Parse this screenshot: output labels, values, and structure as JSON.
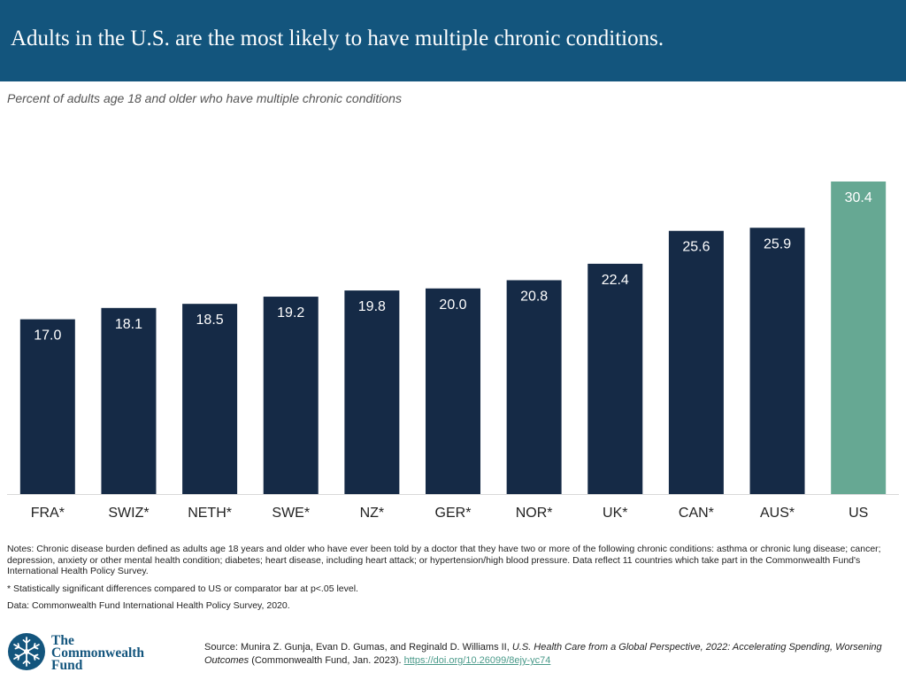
{
  "header": {
    "title": "Adults in the U.S. are the most likely to have multiple chronic conditions."
  },
  "colors": {
    "header_bg": "#13557d",
    "bar_default": "#152a46",
    "bar_us": "#66a893",
    "label_light": "#ffffff",
    "axis_line": "#d9d9d9"
  },
  "chart_data": {
    "type": "bar",
    "title": "Percent of adults age 18 and older who have multiple chronic conditions",
    "categories": [
      "FRA*",
      "SWIZ*",
      "NETH*",
      "SWE*",
      "NZ*",
      "GER*",
      "NOR*",
      "UK*",
      "CAN*",
      "AUS*",
      "US"
    ],
    "values": [
      17.0,
      18.1,
      18.5,
      19.2,
      19.8,
      20.0,
      20.8,
      22.4,
      25.6,
      25.9,
      30.4
    ],
    "value_labels": [
      "17.0",
      "18.1",
      "18.5",
      "19.2",
      "19.8",
      "20.0",
      "20.8",
      "22.4",
      "25.6",
      "25.9",
      "30.4"
    ],
    "highlight_category": "US",
    "xlabel": "",
    "ylabel": "",
    "ylim": [
      0,
      30.4
    ],
    "grid": false,
    "legend": "none"
  },
  "notes": {
    "main": "Notes: Chronic disease burden defined as adults age 18 years and older who have ever been told by a doctor that they have two or more of the following chronic conditions: asthma or chronic lung disease; cancer; depression, anxiety or other mental health condition; diabetes; heart disease, including heart attack; or hypertension/high blood pressure. Data reflect 11 countries which take part in the Commonwealth Fund's International Health Policy Survey.",
    "significance": "* Statistically significant differences compared to US or comparator bar at p<.05 level.",
    "data_source": "Data: Commonwealth Fund International Health Policy Survey, 2020."
  },
  "footer": {
    "logo_lines": [
      "The",
      "Commonwealth",
      "Fund"
    ],
    "source_prefix": "Source: Munira Z. Gunja, Evan D. Gumas, and Reginald D. Williams II, ",
    "source_title": "U.S. Health Care from a Global Perspective, 2022: Accelerating Spending, Worsening Outcomes",
    "source_publisher": " (Commonwealth Fund, Jan. 2023). ",
    "source_link": "https://doi.org/10.26099/8ejy-yc74"
  }
}
